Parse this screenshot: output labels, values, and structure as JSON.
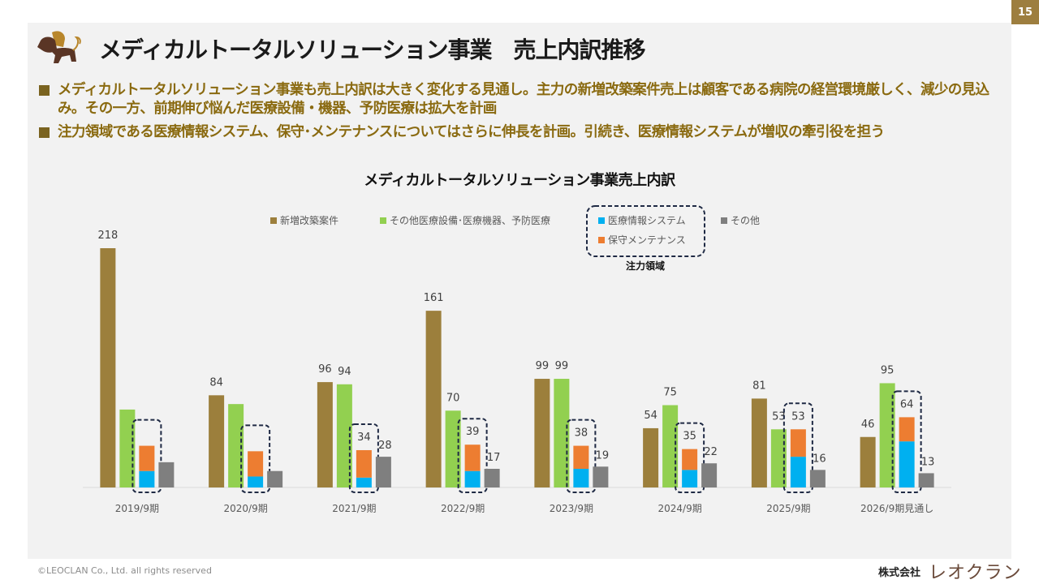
{
  "page": {
    "number": "15",
    "title": "メディカルトータルソリューション事業　売上内訳推移",
    "bullets": [
      "メディカルトータルソリューション事業も売上内訳は大きく変化する見通し。主力の新増改築案件売上は顧客である病院の経営環境厳しく、減少の見込み。その一方、前期伸び悩んだ医療設備・機器、予防医療は拡大を計画",
      "注力領域である医療情報システム、保守･メンテナンスについてはさらに伸長を計画。引続き、医療情報システムが増収の牽引役を担う"
    ],
    "footer": "©LEOCLAN Co., Ltd. all rights reserved",
    "company_prefix": "株式会社",
    "company_brand": "レオクラン",
    "icons": {
      "logo": "lion-logo-icon"
    }
  },
  "chart_data": {
    "type": "bar",
    "title": "メディカルトータルソリューション事業売上内訳",
    "xlabel": "",
    "ylabel": "",
    "ylim": [
      0,
      230
    ],
    "grid": false,
    "legend_position": "top",
    "focus_area_label": "注力領域",
    "categories": [
      "2019/9期",
      "2020/9期",
      "2021/9期",
      "2022/9期",
      "2023/9期",
      "2024/9期",
      "2025/9期",
      "2026/9期見通し"
    ],
    "series": [
      {
        "name": "新増改築案件",
        "color": "#9c7f3c",
        "values": [
          218,
          84,
          96,
          161,
          99,
          54,
          81,
          46
        ],
        "labels": [
          "218",
          "84",
          "96",
          "161",
          "99",
          "54",
          "81",
          "46"
        ]
      },
      {
        "name": "その他医療設備･医療機器、予防医療",
        "color": "#92d050",
        "values": [
          71,
          76,
          94,
          70,
          99,
          75,
          53,
          95
        ],
        "labels": [
          "",
          "",
          "94",
          "70",
          "99",
          "75",
          "53",
          "95"
        ]
      },
      {
        "name": "医療情報システム",
        "color": "#00b0f0",
        "stack": "focus",
        "values": [
          15,
          10,
          9,
          15,
          17,
          16,
          28,
          42
        ]
      },
      {
        "name": "保守メンテナンス",
        "color": "#ed7d31",
        "stack": "focus",
        "values": [
          23,
          23,
          25,
          24,
          21,
          19,
          25,
          22
        ]
      },
      {
        "name": "その他",
        "color": "#7f7f7f",
        "values": [
          23,
          15,
          28,
          17,
          19,
          22,
          16,
          13
        ],
        "labels": [
          "",
          "",
          "28",
          "17",
          "19",
          "22",
          "16",
          "13"
        ]
      }
    ],
    "stack_totals": {
      "values": [
        38,
        33,
        34,
        39,
        38,
        35,
        53,
        64
      ],
      "labels": [
        "",
        "",
        "34",
        "39",
        "38",
        "35",
        "53",
        "64"
      ]
    }
  }
}
